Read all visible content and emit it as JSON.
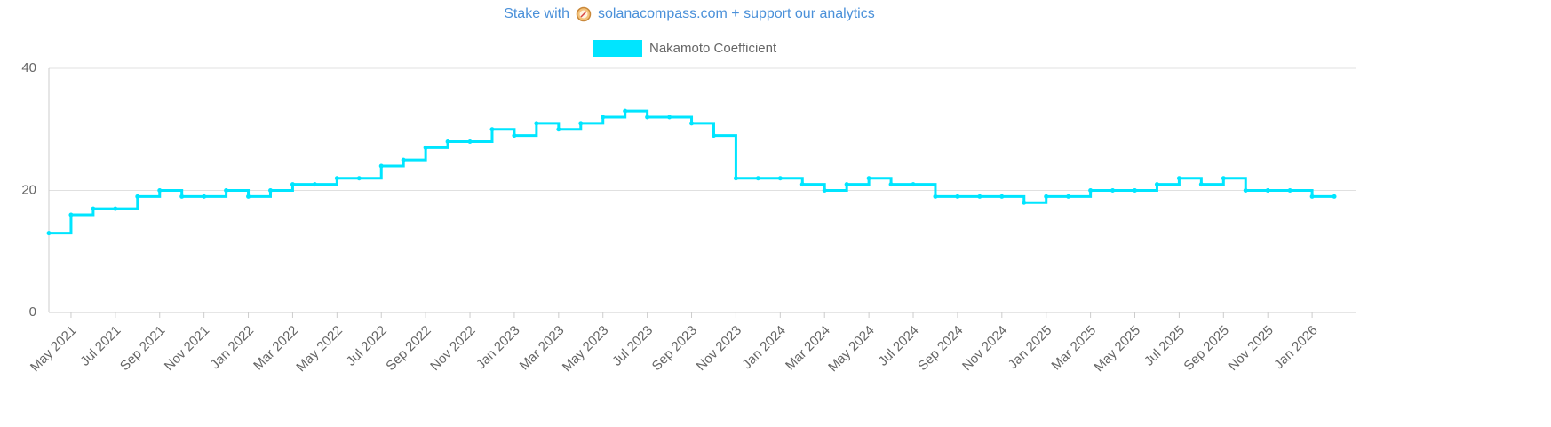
{
  "banner": {
    "prefix": "Stake with",
    "link": "solanacompass.com + support our analytics"
  },
  "chart_data": {
    "type": "line",
    "stepped": true,
    "grid": true,
    "legend": "top",
    "series": [
      {
        "name": "Nakamoto Coefficient",
        "color": "#00e5ff",
        "values": [
          13,
          16,
          17,
          17,
          19,
          20,
          19,
          19,
          20,
          19,
          20,
          21,
          21,
          22,
          22,
          24,
          25,
          27,
          28,
          28,
          30,
          29,
          31,
          30,
          31,
          32,
          33,
          32,
          32,
          31,
          29,
          22,
          22,
          22,
          21,
          20,
          21,
          22,
          21,
          21,
          19,
          19,
          19,
          19,
          18,
          19,
          19,
          20,
          20,
          20,
          21,
          22,
          21,
          22,
          20,
          20,
          20,
          19,
          19
        ]
      }
    ],
    "x": [
      "2021-04",
      "2021-05",
      "2021-06",
      "2021-07",
      "2021-08",
      "2021-09",
      "2021-10",
      "2021-11",
      "2021-12",
      "2022-01",
      "2022-02",
      "2022-03",
      "2022-04",
      "2022-05",
      "2022-06",
      "2022-07",
      "2022-08",
      "2022-09",
      "2022-10",
      "2022-11",
      "2022-12",
      "2023-01",
      "2023-02",
      "2023-03",
      "2023-04",
      "2023-05",
      "2023-06",
      "2023-07",
      "2023-08",
      "2023-09",
      "2023-10",
      "2023-11",
      "2023-12",
      "2024-01",
      "2024-02",
      "2024-03",
      "2024-04",
      "2024-05",
      "2024-06",
      "2024-07",
      "2024-08",
      "2024-09",
      "2024-10",
      "2024-11",
      "2024-12",
      "2025-01",
      "2025-02",
      "2025-03",
      "2025-04",
      "2025-05",
      "2025-06",
      "2025-07",
      "2025-08",
      "2025-09",
      "2025-10",
      "2025-11",
      "2025-12",
      "2026-01",
      "2026-02"
    ],
    "xlim": [
      "2021-04",
      "2026-03"
    ],
    "xticks": [
      {
        "value": "2021-05",
        "label": "May 2021"
      },
      {
        "value": "2021-07",
        "label": "Jul 2021"
      },
      {
        "value": "2021-09",
        "label": "Sep 2021"
      },
      {
        "value": "2021-11",
        "label": "Nov 2021"
      },
      {
        "value": "2022-01",
        "label": "Jan 2022"
      },
      {
        "value": "2022-03",
        "label": "Mar 2022"
      },
      {
        "value": "2022-05",
        "label": "May 2022"
      },
      {
        "value": "2022-07",
        "label": "Jul 2022"
      },
      {
        "value": "2022-09",
        "label": "Sep 2022"
      },
      {
        "value": "2022-11",
        "label": "Nov 2022"
      },
      {
        "value": "2023-01",
        "label": "Jan 2023"
      },
      {
        "value": "2023-03",
        "label": "Mar 2023"
      },
      {
        "value": "2023-05",
        "label": "May 2023"
      },
      {
        "value": "2023-07",
        "label": "Jul 2023"
      },
      {
        "value": "2023-09",
        "label": "Sep 2023"
      },
      {
        "value": "2023-11",
        "label": "Nov 2023"
      },
      {
        "value": "2024-01",
        "label": "Jan 2024"
      },
      {
        "value": "2024-03",
        "label": "Mar 2024"
      },
      {
        "value": "2024-05",
        "label": "May 2024"
      },
      {
        "value": "2024-07",
        "label": "Jul 2024"
      },
      {
        "value": "2024-09",
        "label": "Sep 2024"
      },
      {
        "value": "2024-11",
        "label": "Nov 2024"
      },
      {
        "value": "2025-01",
        "label": "Jan 2025"
      },
      {
        "value": "2025-03",
        "label": "Mar 2025"
      },
      {
        "value": "2025-05",
        "label": "May 2025"
      },
      {
        "value": "2025-07",
        "label": "Jul 2025"
      },
      {
        "value": "2025-09",
        "label": "Sep 2025"
      },
      {
        "value": "2025-11",
        "label": "Nov 2025"
      },
      {
        "value": "2026-01",
        "label": "Jan 2026"
      }
    ],
    "ylim": [
      0,
      40
    ],
    "yticks": [
      0,
      20,
      40
    ]
  }
}
